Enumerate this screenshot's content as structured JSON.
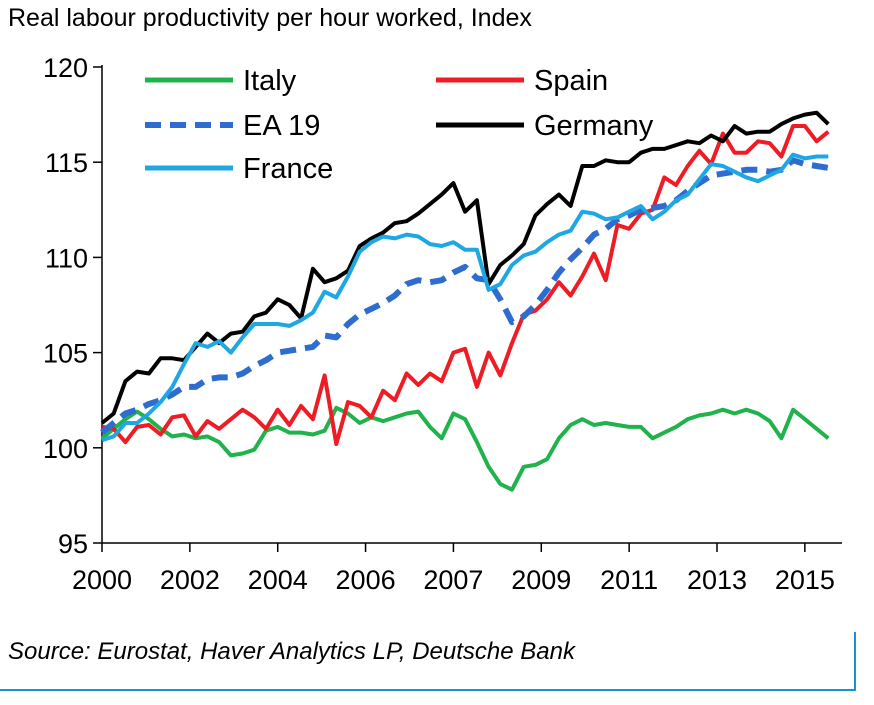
{
  "chart_data": {
    "type": "line",
    "title": "Real labour productivity per hour worked, Index",
    "xlabel": "",
    "ylabel": "",
    "ylim": [
      95,
      120
    ],
    "yticks": [
      95,
      100,
      105,
      110,
      115,
      120
    ],
    "xtick_labels": [
      "2000",
      "2002",
      "2004",
      "2006",
      "2007",
      "2009",
      "2011",
      "2013",
      "2015"
    ],
    "x_range_quarters": [
      0,
      63
    ],
    "grid": false,
    "legend_placement": "top-left",
    "series": [
      {
        "name": "Italy",
        "color": "#20b24b",
        "style": "solid",
        "values": [
          100.5,
          101.0,
          101.5,
          101.9,
          101.5,
          101.0,
          100.6,
          100.7,
          100.5,
          100.6,
          100.3,
          99.6,
          99.7,
          99.9,
          100.9,
          101.1,
          100.8,
          100.8,
          100.7,
          100.9,
          102.1,
          101.8,
          101.3,
          101.6,
          101.4,
          101.6,
          101.8,
          101.9,
          101.1,
          100.5,
          101.8,
          101.5,
          100.3,
          99.0,
          98.1,
          97.8,
          99.0,
          99.1,
          99.4,
          100.5,
          101.2,
          101.5,
          101.2,
          101.3,
          101.2,
          101.1,
          101.1,
          100.5,
          100.8,
          101.1,
          101.5,
          101.7,
          101.8,
          102.0,
          101.8,
          102.0,
          101.8,
          101.4,
          100.5,
          102.0,
          101.5,
          101.0,
          100.5
        ]
      },
      {
        "name": "Spain",
        "color": "#ee1c24",
        "style": "solid",
        "values": [
          101.1,
          101.0,
          100.3,
          101.1,
          101.2,
          100.7,
          101.6,
          101.7,
          100.6,
          101.4,
          101.0,
          101.5,
          102.0,
          101.6,
          101.0,
          102.0,
          101.2,
          102.2,
          101.5,
          103.8,
          100.2,
          102.4,
          102.2,
          101.6,
          103.0,
          102.5,
          103.9,
          103.3,
          103.9,
          103.5,
          105.0,
          105.2,
          103.2,
          105.0,
          103.8,
          105.5,
          107.0,
          107.2,
          107.8,
          108.7,
          108.0,
          109.0,
          110.2,
          108.8,
          111.7,
          111.5,
          112.3,
          112.5,
          114.2,
          113.8,
          114.8,
          115.6,
          114.9,
          116.5,
          115.5,
          115.5,
          116.1,
          116.0,
          115.3,
          116.9,
          116.9,
          116.1,
          116.6
        ]
      },
      {
        "name": "EA 19",
        "color": "#2f6ccf",
        "style": "dashed",
        "values": [
          100.8,
          101.3,
          101.8,
          102.0,
          102.3,
          102.5,
          102.8,
          103.2,
          103.2,
          103.6,
          103.7,
          103.7,
          103.9,
          104.3,
          104.6,
          105.0,
          105.1,
          105.2,
          105.3,
          105.9,
          105.8,
          106.5,
          107.0,
          107.3,
          107.6,
          108.0,
          108.6,
          108.8,
          108.7,
          108.8,
          109.2,
          109.5,
          108.9,
          108.8,
          107.8,
          106.6,
          106.9,
          107.5,
          108.3,
          109.2,
          109.9,
          110.5,
          111.2,
          111.5,
          112.0,
          112.2,
          112.5,
          112.6,
          112.7,
          113.0,
          113.5,
          113.9,
          114.3,
          114.4,
          114.5,
          114.6,
          114.6,
          114.5,
          114.6,
          115.1,
          114.9,
          114.8,
          114.7
        ]
      },
      {
        "name": "Germany",
        "color": "#000000",
        "style": "solid",
        "values": [
          101.3,
          101.8,
          103.5,
          104.0,
          103.9,
          104.7,
          104.7,
          104.6,
          105.3,
          106.0,
          105.5,
          106.0,
          106.1,
          106.9,
          107.1,
          107.8,
          107.5,
          106.8,
          109.4,
          108.7,
          108.9,
          109.3,
          110.6,
          111.0,
          111.3,
          111.8,
          111.9,
          112.3,
          112.8,
          113.3,
          113.9,
          112.4,
          113.0,
          108.6,
          109.6,
          110.1,
          110.7,
          112.2,
          112.8,
          113.3,
          112.7,
          114.8,
          114.8,
          115.1,
          115.0,
          115.0,
          115.5,
          115.7,
          115.7,
          115.9,
          116.1,
          116.0,
          116.4,
          116.1,
          116.9,
          116.5,
          116.6,
          116.6,
          117.0,
          117.3,
          117.5,
          117.6,
          117.0
        ]
      },
      {
        "name": "France",
        "color": "#1ea7e3",
        "style": "solid",
        "values": [
          100.4,
          100.6,
          101.3,
          101.3,
          101.8,
          102.4,
          103.2,
          104.4,
          105.5,
          105.3,
          105.6,
          105.0,
          105.8,
          106.5,
          106.5,
          106.5,
          106.4,
          106.7,
          107.1,
          108.2,
          107.9,
          109.0,
          110.3,
          110.8,
          111.1,
          111.0,
          111.2,
          111.1,
          110.7,
          110.6,
          110.8,
          110.4,
          110.4,
          108.3,
          108.6,
          109.6,
          110.1,
          110.3,
          110.8,
          111.2,
          111.4,
          112.4,
          112.3,
          112.0,
          112.1,
          112.4,
          112.7,
          112.0,
          112.4,
          113.0,
          113.3,
          114.1,
          114.9,
          114.8,
          114.5,
          114.2,
          114.0,
          114.3,
          114.6,
          115.4,
          115.2,
          115.3,
          115.3
        ]
      }
    ]
  },
  "source": "Source: Eurostat, Haver Analytics LP, Deutsche Bank"
}
